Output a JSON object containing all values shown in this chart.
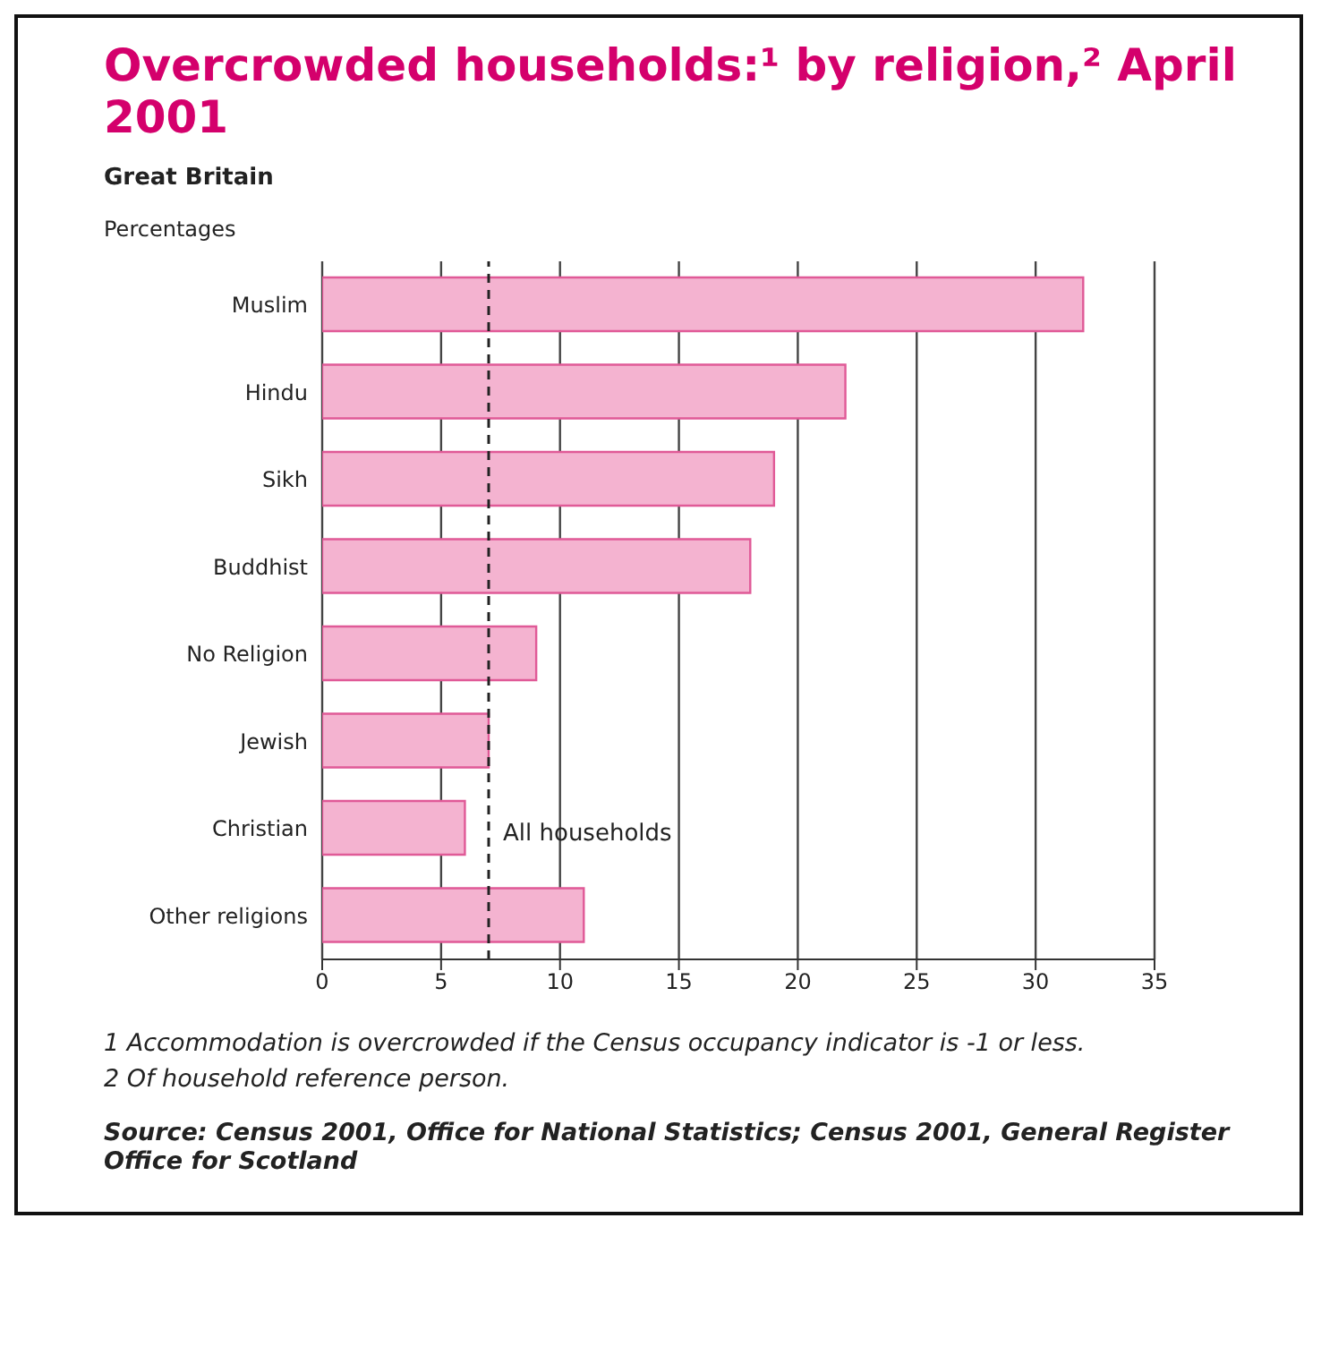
{
  "chart_data": {
    "type": "bar",
    "orientation": "horizontal",
    "title": "Overcrowded households:¹ by religion,² April 2001",
    "subtitle": "Great Britain",
    "xlabel": "Percentages",
    "categories": [
      "Muslim",
      "Hindu",
      "Sikh",
      "Buddhist",
      "No Religion",
      "Jewish",
      "Christian",
      "Other religions"
    ],
    "values": [
      32,
      22,
      19,
      18,
      9,
      7,
      6,
      11
    ],
    "color": "#f4b3d0",
    "xlim": [
      0,
      35
    ],
    "xticks": [
      0,
      5,
      10,
      15,
      20,
      25,
      30,
      35
    ],
    "grid": "x",
    "ref_lines": [
      {
        "axis": "x",
        "value": 7,
        "label": "All households",
        "line_style": "dashed",
        "color": "#222222"
      }
    ],
    "annotations": [
      "1  Accommodation is overcrowded if the Census occupancy indicator is -1 or less.",
      "2  Of household reference person.",
      "Source: Census 2001, Office for National Statistics; Census 2001, General Register Office for Scotland"
    ]
  }
}
